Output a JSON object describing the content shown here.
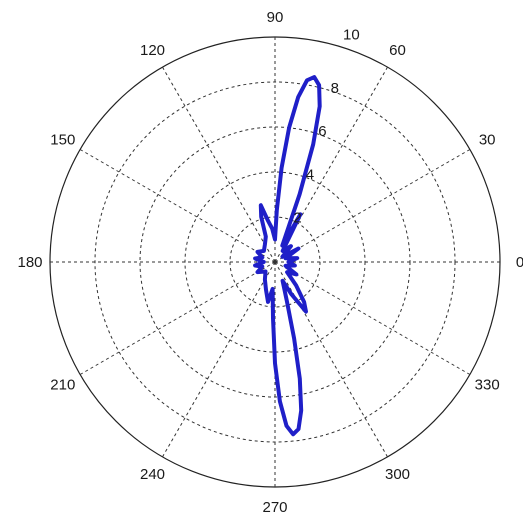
{
  "chart_data": {
    "type": "polar-line",
    "angle_unit": "degrees",
    "r_max": 10,
    "radial_ticks": [
      "2",
      "4",
      "6",
      "8",
      "10"
    ],
    "angle_ticks": [
      "0",
      "30",
      "60",
      "90",
      "120",
      "150",
      "180",
      "210",
      "240",
      "270",
      "300",
      "330"
    ],
    "grid": true,
    "series": [
      {
        "color": "#1f1fc8",
        "points": [
          {
            "theta": 0,
            "r": 0.6
          },
          {
            "theta": 10,
            "r": 1.0
          },
          {
            "theta": 20,
            "r": 0.5
          },
          {
            "theta": 30,
            "r": 1.2
          },
          {
            "theta": 35,
            "r": 0.4
          },
          {
            "theta": 45,
            "r": 1.0
          },
          {
            "theta": 55,
            "r": 0.6
          },
          {
            "theta": 62,
            "r": 2.4
          },
          {
            "theta": 66,
            "r": 0.8
          },
          {
            "theta": 70,
            "r": 3.2
          },
          {
            "theta": 72,
            "r": 5.5
          },
          {
            "theta": 74,
            "r": 7.2
          },
          {
            "theta": 76,
            "r": 8.1
          },
          {
            "theta": 78,
            "r": 8.4
          },
          {
            "theta": 80,
            "r": 8.2
          },
          {
            "theta": 82,
            "r": 7.4
          },
          {
            "theta": 84,
            "r": 6.0
          },
          {
            "theta": 86,
            "r": 4.2
          },
          {
            "theta": 88,
            "r": 2.3
          },
          {
            "theta": 90,
            "r": 1.0
          },
          {
            "theta": 95,
            "r": 1.5
          },
          {
            "theta": 100,
            "r": 1.9
          },
          {
            "theta": 104,
            "r": 2.6
          },
          {
            "theta": 107,
            "r": 2.1
          },
          {
            "theta": 110,
            "r": 1.2
          },
          {
            "theta": 120,
            "r": 0.9
          },
          {
            "theta": 135,
            "r": 0.7
          },
          {
            "theta": 150,
            "r": 0.9
          },
          {
            "theta": 160,
            "r": 0.6
          },
          {
            "theta": 170,
            "r": 0.9
          },
          {
            "theta": 180,
            "r": 0.5
          },
          {
            "theta": 190,
            "r": 0.9
          },
          {
            "theta": 200,
            "r": 0.6
          },
          {
            "theta": 210,
            "r": 0.9
          },
          {
            "theta": 225,
            "r": 0.6
          },
          {
            "theta": 240,
            "r": 0.9
          },
          {
            "theta": 252,
            "r": 1.3
          },
          {
            "theta": 260,
            "r": 1.8
          },
          {
            "theta": 265,
            "r": 1.2
          },
          {
            "theta": 268,
            "r": 2.5
          },
          {
            "theta": 270,
            "r": 4.5
          },
          {
            "theta": 272,
            "r": 6.2
          },
          {
            "theta": 274,
            "r": 7.3
          },
          {
            "theta": 276,
            "r": 7.7
          },
          {
            "theta": 278,
            "r": 7.5
          },
          {
            "theta": 280,
            "r": 6.7
          },
          {
            "theta": 282,
            "r": 5.3
          },
          {
            "theta": 284,
            "r": 3.5
          },
          {
            "theta": 287,
            "r": 1.8
          },
          {
            "theta": 292,
            "r": 0.9
          },
          {
            "theta": 297,
            "r": 1.6
          },
          {
            "theta": 302,
            "r": 2.6
          },
          {
            "theta": 306,
            "r": 2.2
          },
          {
            "theta": 312,
            "r": 1.4
          },
          {
            "theta": 320,
            "r": 0.7
          },
          {
            "theta": 330,
            "r": 1.1
          },
          {
            "theta": 340,
            "r": 0.5
          },
          {
            "theta": 350,
            "r": 0.9
          },
          {
            "theta": 360,
            "r": 0.6
          }
        ]
      }
    ]
  }
}
